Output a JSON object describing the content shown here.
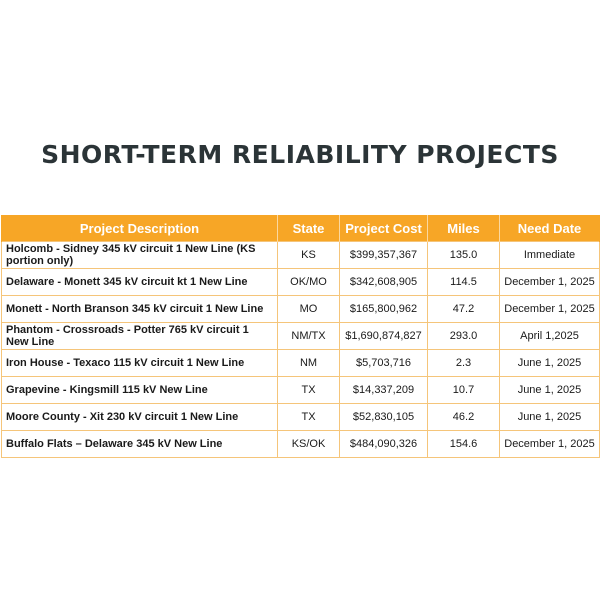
{
  "title": "SHORT-TERM RELIABILITY PROJECTS",
  "colors": {
    "header_bg": "#f7a626",
    "border": "#f5c57a",
    "title": "#2b3437"
  },
  "table": {
    "headers": [
      "Project Description",
      "State",
      "Project Cost",
      "Miles",
      "Need Date"
    ],
    "rows": [
      {
        "description": "Holcomb - Sidney 345 kV circuit 1 New Line (KS portion only)",
        "state": "KS",
        "cost": "$399,357,367",
        "miles": "135.0",
        "need_date": "Immediate"
      },
      {
        "description": "Delaware - Monett 345 kV circuit kt 1 New Line",
        "state": "OK/MO",
        "cost": "$342,608,905",
        "miles": "114.5",
        "need_date": "December 1, 2025"
      },
      {
        "description": "Monett - North Branson 345 kV circuit 1 New Line",
        "state": "MO",
        "cost": "$165,800,962",
        "miles": "47.2",
        "need_date": "December 1, 2025"
      },
      {
        "description": "Phantom - Crossroads - Potter 765 kV circuit 1 New Line",
        "state": "NM/TX",
        "cost": "$1,690,874,827",
        "miles": "293.0",
        "need_date": "April 1,2025"
      },
      {
        "description": "Iron House - Texaco 115 kV circuit 1 New Line",
        "state": "NM",
        "cost": "$5,703,716",
        "miles": "2.3",
        "need_date": "June 1, 2025"
      },
      {
        "description": "Grapevine - Kingsmill 115 kV New Line",
        "state": "TX",
        "cost": "$14,337,209",
        "miles": "10.7",
        "need_date": "June 1, 2025"
      },
      {
        "description": "Moore County - Xit 230 kV circuit 1 New Line",
        "state": "TX",
        "cost": "$52,830,105",
        "miles": "46.2",
        "need_date": "June 1, 2025"
      },
      {
        "description": "Buffalo Flats – Delaware 345 kV New Line",
        "state": "KS/OK",
        "cost": "$484,090,326",
        "miles": "154.6",
        "need_date": "December 1, 2025"
      }
    ]
  }
}
